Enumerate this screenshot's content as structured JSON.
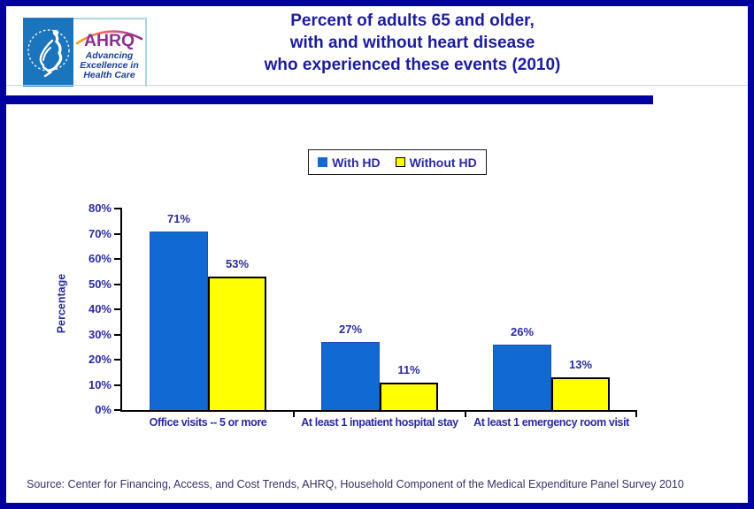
{
  "header": {
    "title_lines": [
      "Percent of adults 65 and older,",
      "with and without heart disease",
      "who experienced these events (2010)"
    ],
    "logo": {
      "hhs_name": "U.S. Department of Health and Human Services seal",
      "ahrq_acronym": "AHRQ",
      "tagline_lines": [
        "Advancing",
        "Excellence in",
        "Health Care"
      ]
    }
  },
  "chart_data": {
    "type": "bar",
    "title": "Percent of adults 65 and older, with and without heart disease who experienced these events (2010)",
    "categories": [
      "Office visits -- 5 or more",
      "At least 1 inpatient hospital stay",
      "At least 1 emergency room visit"
    ],
    "series": [
      {
        "name": "With HD",
        "color": "#1169d2",
        "values": [
          71,
          27,
          26
        ]
      },
      {
        "name": "Without HD",
        "color": "#ffff00",
        "values": [
          53,
          11,
          13
        ]
      }
    ],
    "xlabel": "",
    "ylabel": "Percentage",
    "ylim": [
      0,
      80
    ],
    "ytick_step": 10,
    "value_suffix": "%",
    "grid": false,
    "legend_position": "top-center"
  },
  "source": "Source: Center for Financing, Access, and Cost Trends, AHRQ, Household Component of the Medical Expenditure Panel Survey 2010",
  "colors": {
    "navy": "#0000a1",
    "title_text": "#1c1c9c",
    "chart_text": "#2b2ba0",
    "blue_bar_border": "#1d50b0",
    "yellow_bar_border": "#000000",
    "source_text": "#333366",
    "hhs_blue": "#1b75bc",
    "ahrq_purple": "#8b3090",
    "tagline_navy": "#1b3f94"
  }
}
